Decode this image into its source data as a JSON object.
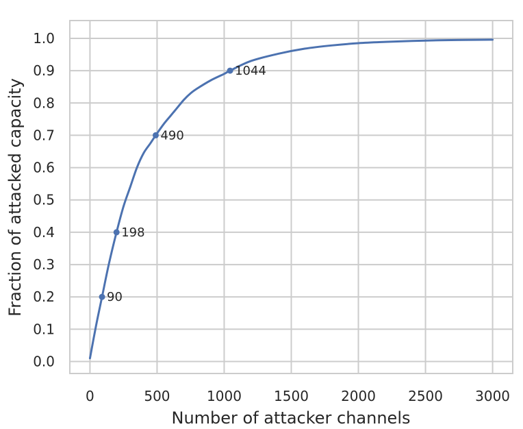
{
  "chart_data": {
    "type": "line",
    "title": "",
    "xlabel": "Number of attacker channels",
    "ylabel": "Fraction of attacked capacity",
    "xlim": [
      -150,
      3150
    ],
    "ylim": [
      -0.037,
      1.055
    ],
    "x_ticks": [
      0,
      500,
      1000,
      1500,
      2000,
      2500,
      3000
    ],
    "x_tick_labels": [
      "0",
      "500",
      "1000",
      "1500",
      "2000",
      "2500",
      "3000"
    ],
    "y_ticks": [
      0.0,
      0.1,
      0.2,
      0.3,
      0.4,
      0.5,
      0.6,
      0.7,
      0.8,
      0.9,
      1.0
    ],
    "y_tick_labels": [
      "0.0",
      "0.1",
      "0.2",
      "0.3",
      "0.4",
      "0.5",
      "0.6",
      "0.7",
      "0.8",
      "0.9",
      "1.0"
    ],
    "grid": true,
    "line_color": "#4c72b0",
    "grid_color": "#cccccc",
    "series": [
      {
        "x": [
          0,
          45,
          90,
          140,
          198,
          250,
          300,
          350,
          400,
          450,
          490,
          550,
          600,
          650,
          700,
          750,
          800,
          900,
          1000,
          1044,
          1200,
          1400,
          1600,
          1800,
          2000,
          2200,
          2400,
          2600,
          2800,
          3000
        ],
        "y": [
          0.01,
          0.11,
          0.2,
          0.3,
          0.4,
          0.48,
          0.54,
          0.6,
          0.645,
          0.675,
          0.7,
          0.735,
          0.76,
          0.785,
          0.81,
          0.83,
          0.845,
          0.87,
          0.89,
          0.9,
          0.93,
          0.952,
          0.968,
          0.978,
          0.985,
          0.989,
          0.992,
          0.994,
          0.995,
          0.996
        ]
      }
    ],
    "marked_points": [
      {
        "x": 90,
        "y": 0.2,
        "label": "90"
      },
      {
        "x": 198,
        "y": 0.4,
        "label": "198"
      },
      {
        "x": 490,
        "y": 0.7,
        "label": "490"
      },
      {
        "x": 1044,
        "y": 0.9,
        "label": "1044"
      }
    ]
  }
}
